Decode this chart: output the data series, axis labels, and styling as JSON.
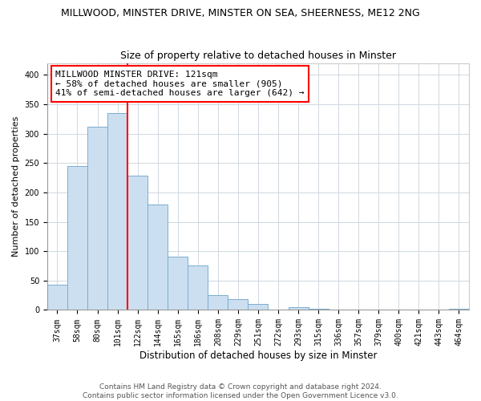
{
  "title": "MILLWOOD, MINSTER DRIVE, MINSTER ON SEA, SHEERNESS, ME12 2NG",
  "subtitle": "Size of property relative to detached houses in Minster",
  "xlabel": "Distribution of detached houses by size in Minster",
  "ylabel": "Number of detached properties",
  "bar_labels": [
    "37sqm",
    "58sqm",
    "80sqm",
    "101sqm",
    "122sqm",
    "144sqm",
    "165sqm",
    "186sqm",
    "208sqm",
    "229sqm",
    "251sqm",
    "272sqm",
    "293sqm",
    "315sqm",
    "336sqm",
    "357sqm",
    "379sqm",
    "400sqm",
    "421sqm",
    "443sqm",
    "464sqm"
  ],
  "bar_heights": [
    43,
    245,
    312,
    335,
    228,
    180,
    90,
    75,
    25,
    18,
    10,
    0,
    5,
    2,
    0,
    0,
    0,
    0,
    0,
    0,
    2
  ],
  "bar_color": "#ccdff0",
  "bar_edge_color": "#7aaed0",
  "vline_x": 3.5,
  "vline_color": "red",
  "annotation_title": "MILLWOOD MINSTER DRIVE: 121sqm",
  "annotation_line1": "← 58% of detached houses are smaller (905)",
  "annotation_line2": "41% of semi-detached houses are larger (642) →",
  "ylim": [
    0,
    420
  ],
  "yticks": [
    0,
    50,
    100,
    150,
    200,
    250,
    300,
    350,
    400
  ],
  "footer_line1": "Contains HM Land Registry data © Crown copyright and database right 2024.",
  "footer_line2": "Contains public sector information licensed under the Open Government Licence v3.0.",
  "title_fontsize": 9,
  "subtitle_fontsize": 9,
  "xlabel_fontsize": 8.5,
  "ylabel_fontsize": 8,
  "tick_fontsize": 7,
  "footer_fontsize": 6.5,
  "annot_fontsize": 8
}
